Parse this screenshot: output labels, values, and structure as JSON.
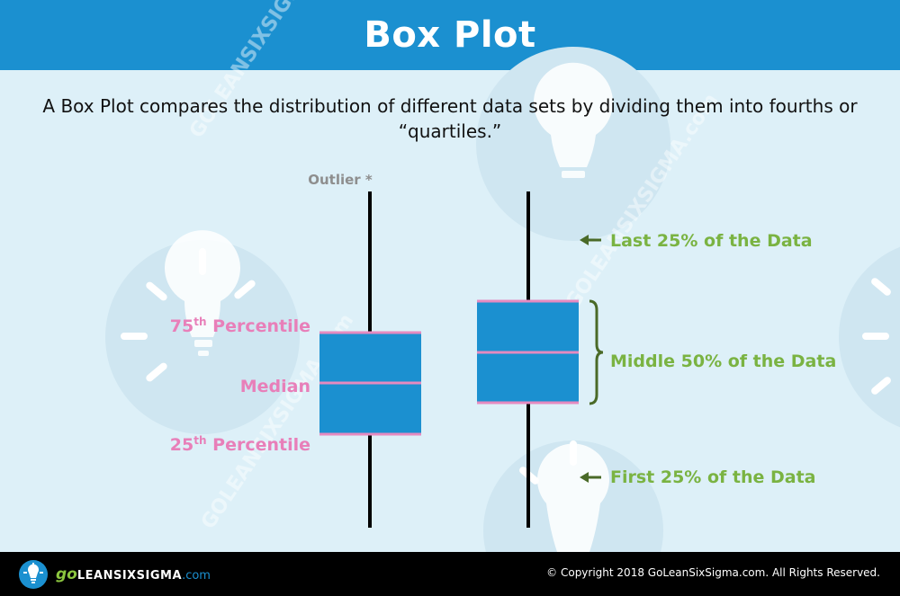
{
  "header": {
    "title": "Box Plot"
  },
  "intro": {
    "text": "A Box Plot compares the distribution of different data sets by dividing them into fourths or “quartiles.”"
  },
  "left_plot": {
    "outlier_label": "Outlier *",
    "p75_prefix": "75",
    "p75_sup": "th",
    "p75_suffix": " Percentile",
    "median_label": "Median",
    "p25_prefix": "25",
    "p25_sup": "th",
    "p25_suffix": " Percentile"
  },
  "right_plot": {
    "last_label": "Last 25% of the Data",
    "middle_label": "Middle 50% of the Data",
    "first_label": "First 25% of the Data"
  },
  "watermark": {
    "text": "GOLEANSIXSIGMA.com"
  },
  "footer": {
    "logo_go": "go",
    "logo_lss": "LEANSIXSIGMA",
    "logo_com": ".com",
    "copyright": "© Copyright 2018 GoLeanSixSigma.com. All Rights Reserved."
  },
  "colors": {
    "header_bg": "#1b90d0",
    "background": "#ddf0f8",
    "box_fill": "#1b90d0",
    "quartile_line": "#e58ac0",
    "percentile_text": "#e87fb9",
    "green_text": "#7ab342",
    "arrow": "#4a6a28"
  },
  "icons": [
    "lightbulb-icon",
    "arrow-left-icon",
    "curly-brace-icon"
  ]
}
